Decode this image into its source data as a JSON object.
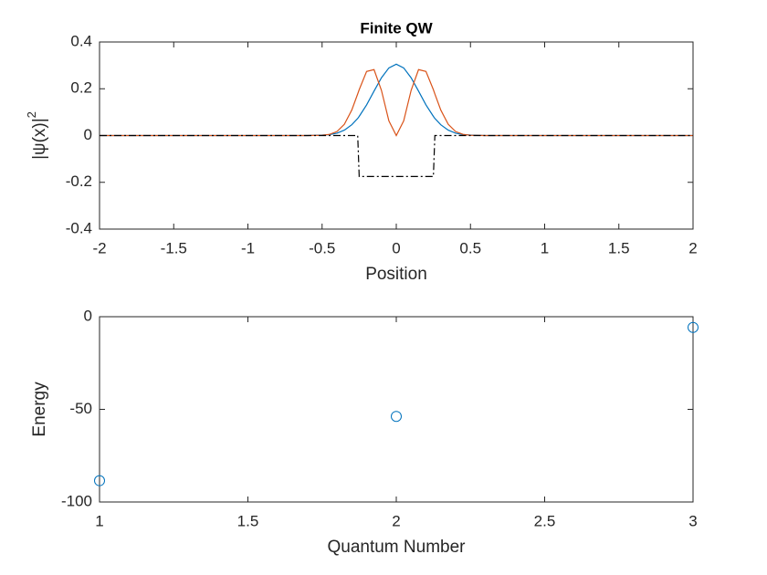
{
  "chart_data": [
    {
      "type": "line",
      "title": "Finite QW",
      "xlabel": "Position",
      "ylabel": "|ψ(x)|",
      "ylabel_sup": "2",
      "x": [
        -2,
        -1,
        -0.6,
        -0.5,
        -0.45,
        -0.4,
        -0.35,
        -0.3,
        -0.26,
        -0.25,
        -0.2,
        -0.15,
        -0.1,
        -0.05,
        0,
        0.05,
        0.1,
        0.15,
        0.2,
        0.25,
        0.26,
        0.3,
        0.35,
        0.4,
        0.45,
        0.5,
        0.6,
        1,
        2
      ],
      "series": [
        {
          "color": "#0072bd",
          "linestyle": "-",
          "values": [
            0,
            0,
            0,
            0.002,
            0.004,
            0.01,
            0.023,
            0.046,
            0.073,
            0.082,
            0.131,
            0.19,
            0.247,
            0.289,
            0.305,
            0.289,
            0.247,
            0.19,
            0.131,
            0.082,
            0.073,
            0.046,
            0.023,
            0.01,
            0.004,
            0.002,
            0,
            0,
            0
          ]
        },
        {
          "color": "#d95319",
          "linestyle": "-",
          "values": [
            0,
            0,
            0,
            0.001,
            0.005,
            0.017,
            0.048,
            0.109,
            0.178,
            0.196,
            0.274,
            0.282,
            0.193,
            0.063,
            0,
            0.063,
            0.193,
            0.282,
            0.274,
            0.196,
            0.178,
            0.109,
            0.048,
            0.017,
            0.005,
            0.001,
            0,
            0,
            0
          ]
        },
        {
          "color": "#000000",
          "linestyle": "-.",
          "values": [
            0,
            0,
            0,
            0,
            0,
            0,
            0,
            0,
            0,
            -0.175,
            -0.175,
            -0.175,
            -0.175,
            -0.175,
            -0.175,
            -0.175,
            -0.175,
            -0.175,
            -0.175,
            -0.175,
            0,
            0,
            0,
            0,
            0,
            0,
            0,
            0,
            0
          ]
        }
      ],
      "xlim": [
        -2,
        2
      ],
      "xticks": [
        -2,
        -1.5,
        -1,
        -0.5,
        0,
        0.5,
        1,
        1.5,
        2
      ],
      "ylim": [
        -0.4,
        0.4
      ],
      "yticks": [
        -0.4,
        -0.2,
        0,
        0.2,
        0.4
      ]
    },
    {
      "type": "scatter",
      "xlabel": "Quantum Number",
      "ylabel": "Energy",
      "x": [
        1,
        2,
        3
      ],
      "values": [
        -88.5,
        -53.8,
        -5.8
      ],
      "color": "#0072bd",
      "xlim": [
        1,
        3
      ],
      "xticks": [
        1,
        1.5,
        2,
        2.5,
        3
      ],
      "ylim": [
        -100,
        0
      ],
      "yticks": [
        -100,
        -50,
        0
      ]
    }
  ]
}
